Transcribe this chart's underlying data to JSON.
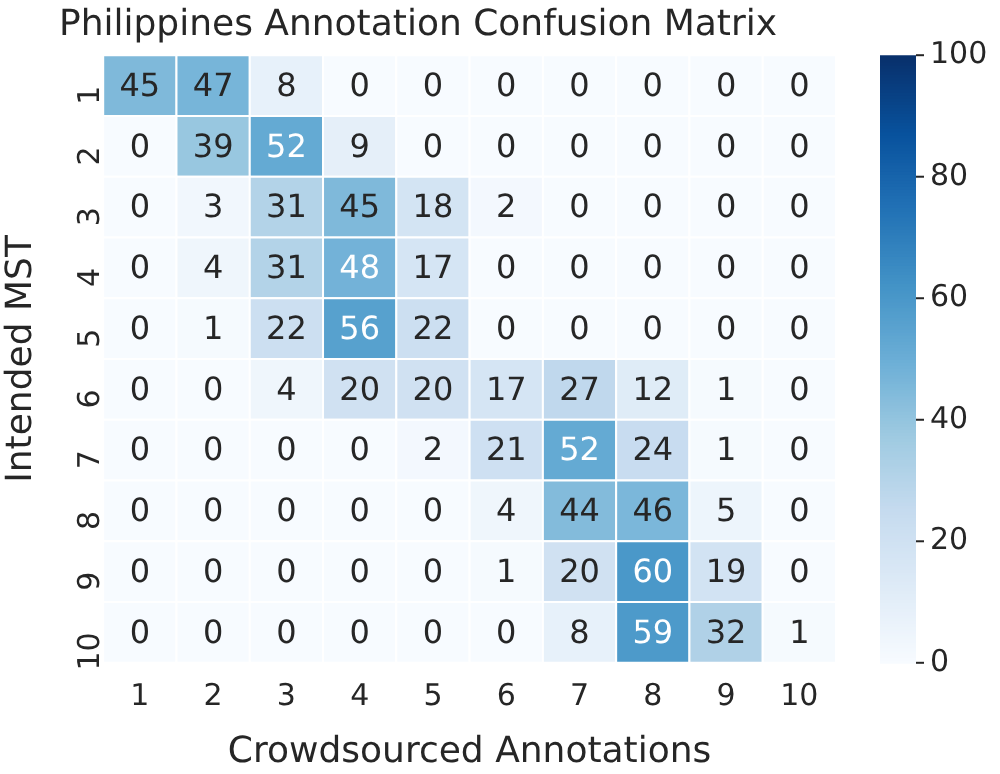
{
  "chart_data": {
    "type": "heatmap",
    "title": "Philippines Annotation Confusion Matrix",
    "xlabel": "Crowdsourced Annotations",
    "ylabel": "Intended MST",
    "categories": [
      "1",
      "2",
      "3",
      "4",
      "5",
      "6",
      "7",
      "8",
      "9",
      "10"
    ],
    "y_categories": [
      "1",
      "2",
      "3",
      "4",
      "5",
      "6",
      "7",
      "8",
      "9",
      "10"
    ],
    "cells": [
      [
        45,
        47,
        8,
        0,
        0,
        0,
        0,
        0,
        0,
        0
      ],
      [
        0,
        39,
        52,
        9,
        0,
        0,
        0,
        0,
        0,
        0
      ],
      [
        0,
        3,
        31,
        45,
        18,
        2,
        0,
        0,
        0,
        0
      ],
      [
        0,
        4,
        31,
        48,
        17,
        0,
        0,
        0,
        0,
        0
      ],
      [
        0,
        1,
        22,
        56,
        22,
        0,
        0,
        0,
        0,
        0
      ],
      [
        0,
        0,
        4,
        20,
        20,
        17,
        27,
        12,
        1,
        0
      ],
      [
        0,
        0,
        0,
        0,
        2,
        21,
        52,
        24,
        1,
        0
      ],
      [
        0,
        0,
        0,
        0,
        0,
        4,
        44,
        46,
        5,
        0
      ],
      [
        0,
        0,
        0,
        0,
        0,
        1,
        20,
        60,
        19,
        0
      ],
      [
        0,
        0,
        0,
        0,
        0,
        0,
        8,
        59,
        32,
        1
      ]
    ],
    "data_labels": true,
    "clim": [
      0,
      100
    ],
    "cticks": [
      0,
      20,
      40,
      60,
      80,
      100
    ]
  }
}
